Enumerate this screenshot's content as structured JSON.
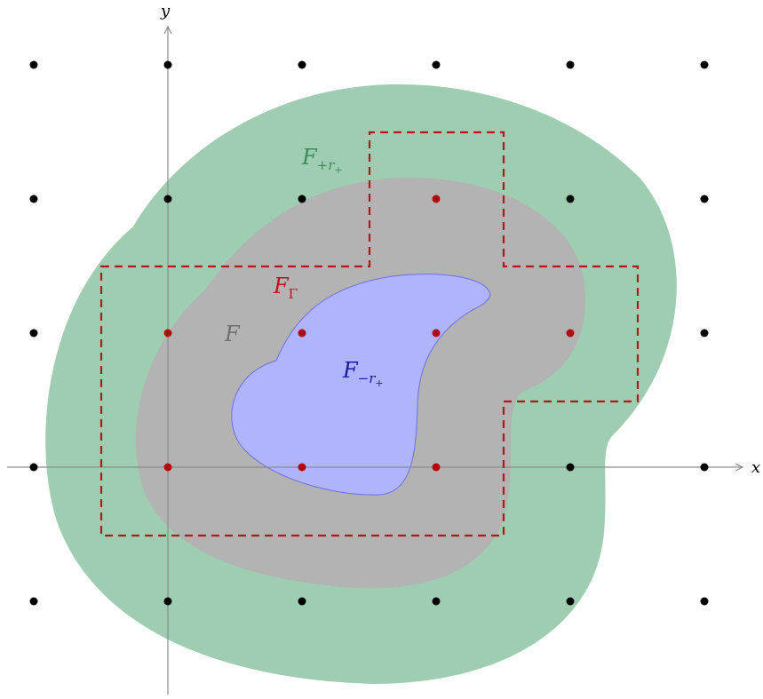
{
  "axes": {
    "x_label": "x",
    "y_label": "y"
  },
  "regions": {
    "outer": {
      "name": "F",
      "sub": "+r",
      "subsub": "+",
      "color": "#9ecdb1",
      "label_color": "#3f8a5c"
    },
    "main": {
      "name": "F",
      "color": "#b3b3b3",
      "label_color": "#707070"
    },
    "inner": {
      "name": "F",
      "sub": "−r",
      "subsub": "+",
      "color": "#b0b4fd",
      "stroke": "#6c70e6",
      "label_color": "#1a1aa6"
    },
    "gamma": {
      "name": "F",
      "sub": "Γ",
      "color": "#b5161b"
    }
  },
  "lattice": {
    "point_color": "#000000",
    "highlight_color": "#b00a0a",
    "columns": [
      -1,
      0,
      1,
      2,
      3,
      4
    ],
    "rows": [
      3,
      2,
      1,
      0,
      -1
    ],
    "highlighted": [
      [
        2,
        2
      ],
      [
        0,
        1
      ],
      [
        1,
        1
      ],
      [
        2,
        1
      ],
      [
        3,
        1
      ],
      [
        0,
        0
      ],
      [
        1,
        0
      ],
      [
        2,
        0
      ]
    ]
  },
  "colors": {
    "axis": "#8c8c8c"
  }
}
